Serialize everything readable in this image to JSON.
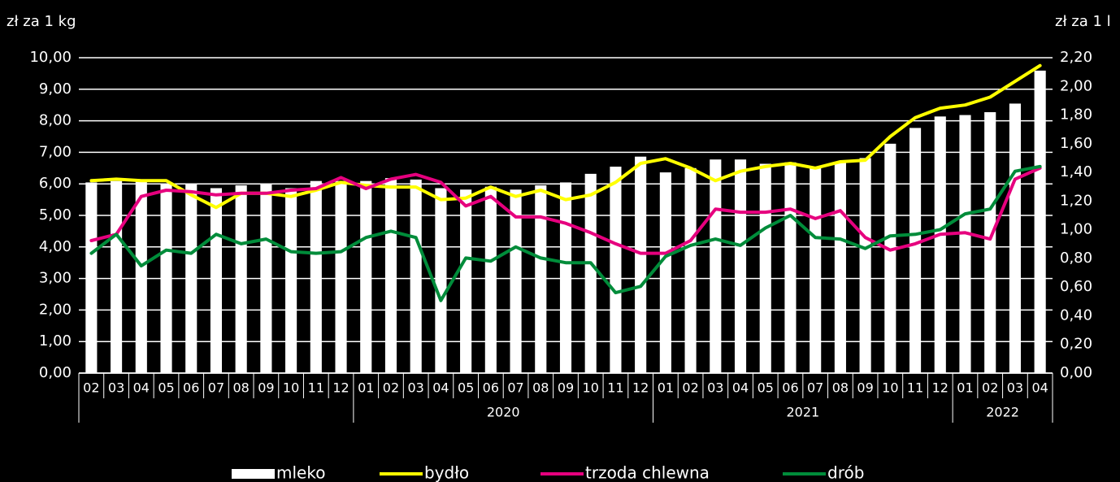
{
  "chart_data": {
    "type": "combo",
    "y_label": "zł za 1 kg",
    "y2_label": "zł za 1 l",
    "categories": [
      "02",
      "03",
      "04",
      "05",
      "06",
      "07",
      "08",
      "09",
      "10",
      "11",
      "12",
      "01",
      "02",
      "03",
      "04",
      "05",
      "06",
      "07",
      "08",
      "09",
      "10",
      "11",
      "12",
      "01",
      "02",
      "03",
      "04",
      "05",
      "06",
      "07",
      "08",
      "09",
      "10",
      "11",
      "12",
      "01",
      "02",
      "03",
      "04"
    ],
    "groups": [
      {
        "label": null,
        "size": 11
      },
      {
        "label": "2020",
        "size": 12
      },
      {
        "label": "2021",
        "size": 12
      },
      {
        "label": "2022",
        "size": 4
      }
    ],
    "ylim": [
      0,
      10
    ],
    "yticks": [
      {
        "value": 0,
        "label": "0,00"
      },
      {
        "value": 1,
        "label": "1,00"
      },
      {
        "value": 2,
        "label": "2,00"
      },
      {
        "value": 3,
        "label": "3,00"
      },
      {
        "value": 4,
        "label": "4,00"
      },
      {
        "value": 5,
        "label": "5,00"
      },
      {
        "value": 6,
        "label": "6,00"
      },
      {
        "value": 7,
        "label": "7,00"
      },
      {
        "value": 8,
        "label": "8,00"
      },
      {
        "value": 9,
        "label": "9,00"
      },
      {
        "value": 10,
        "label": "10,00"
      }
    ],
    "y2lim": [
      0,
      2.2
    ],
    "y2ticks": [
      {
        "value": 0,
        "label": "0,00"
      },
      {
        "value": 0.2,
        "label": "0,20"
      },
      {
        "value": 0.4,
        "label": "0,40"
      },
      {
        "value": 0.6,
        "label": "0,60"
      },
      {
        "value": 0.8,
        "label": "0,80"
      },
      {
        "value": 1,
        "label": "1,00"
      },
      {
        "value": 1.2,
        "label": "1,20"
      },
      {
        "value": 1.4,
        "label": "1,40"
      },
      {
        "value": 1.6,
        "label": "1,60"
      },
      {
        "value": 1.8,
        "label": "1,80"
      },
      {
        "value": 2,
        "label": "2,00"
      },
      {
        "value": 2.2,
        "label": "2,20"
      }
    ],
    "grid": true,
    "legend": "bottom",
    "series": [
      {
        "name": "mleko",
        "type": "bar",
        "axis": "y2",
        "color": "#ffffff",
        "values": [
          1.33,
          1.34,
          1.34,
          1.32,
          1.32,
          1.29,
          1.31,
          1.32,
          1.29,
          1.34,
          1.34,
          1.34,
          1.36,
          1.35,
          1.29,
          1.28,
          1.3,
          1.28,
          1.31,
          1.33,
          1.39,
          1.44,
          1.51,
          1.4,
          1.43,
          1.49,
          1.49,
          1.46,
          1.47,
          1.44,
          1.47,
          1.5,
          1.6,
          1.71,
          1.79,
          1.8,
          1.82,
          1.88,
          2.11
        ]
      },
      {
        "name": "bydło",
        "type": "line",
        "color": "#ffff00",
        "values": [
          6.1,
          6.15,
          6.1,
          6.1,
          5.65,
          5.25,
          5.7,
          5.7,
          5.6,
          5.8,
          6.05,
          5.95,
          5.9,
          5.9,
          5.5,
          5.55,
          5.9,
          5.6,
          5.8,
          5.5,
          5.65,
          6.05,
          6.65,
          6.8,
          6.5,
          6.1,
          6.4,
          6.55,
          6.65,
          6.5,
          6.7,
          6.75,
          7.5,
          8.1,
          8.4,
          8.5,
          8.75,
          9.25,
          9.75
        ]
      },
      {
        "name": "trzoda chlewna",
        "type": "line",
        "color": "#e6007e",
        "values": [
          4.2,
          4.4,
          5.6,
          5.8,
          5.75,
          5.65,
          5.7,
          5.7,
          5.8,
          5.85,
          6.2,
          5.85,
          6.15,
          6.3,
          6.05,
          5.3,
          5.6,
          4.95,
          4.95,
          4.75,
          4.45,
          4.1,
          3.8,
          3.8,
          4.2,
          5.2,
          5.1,
          5.1,
          5.2,
          4.9,
          5.15,
          4.3,
          3.9,
          4.1,
          4.4,
          4.45,
          4.25,
          6.15,
          6.5
        ]
      },
      {
        "name": "drób",
        "type": "line",
        "color": "#008c3a",
        "values": [
          3.8,
          4.4,
          3.4,
          3.9,
          3.8,
          4.4,
          4.1,
          4.25,
          3.85,
          3.8,
          3.85,
          4.3,
          4.5,
          4.3,
          2.3,
          3.65,
          3.55,
          4.0,
          3.65,
          3.5,
          3.5,
          2.55,
          2.75,
          3.7,
          4.05,
          4.25,
          4.05,
          4.6,
          5.0,
          4.3,
          4.25,
          3.95,
          4.35,
          4.4,
          4.55,
          5.05,
          5.2,
          6.4,
          6.55
        ]
      }
    ]
  }
}
